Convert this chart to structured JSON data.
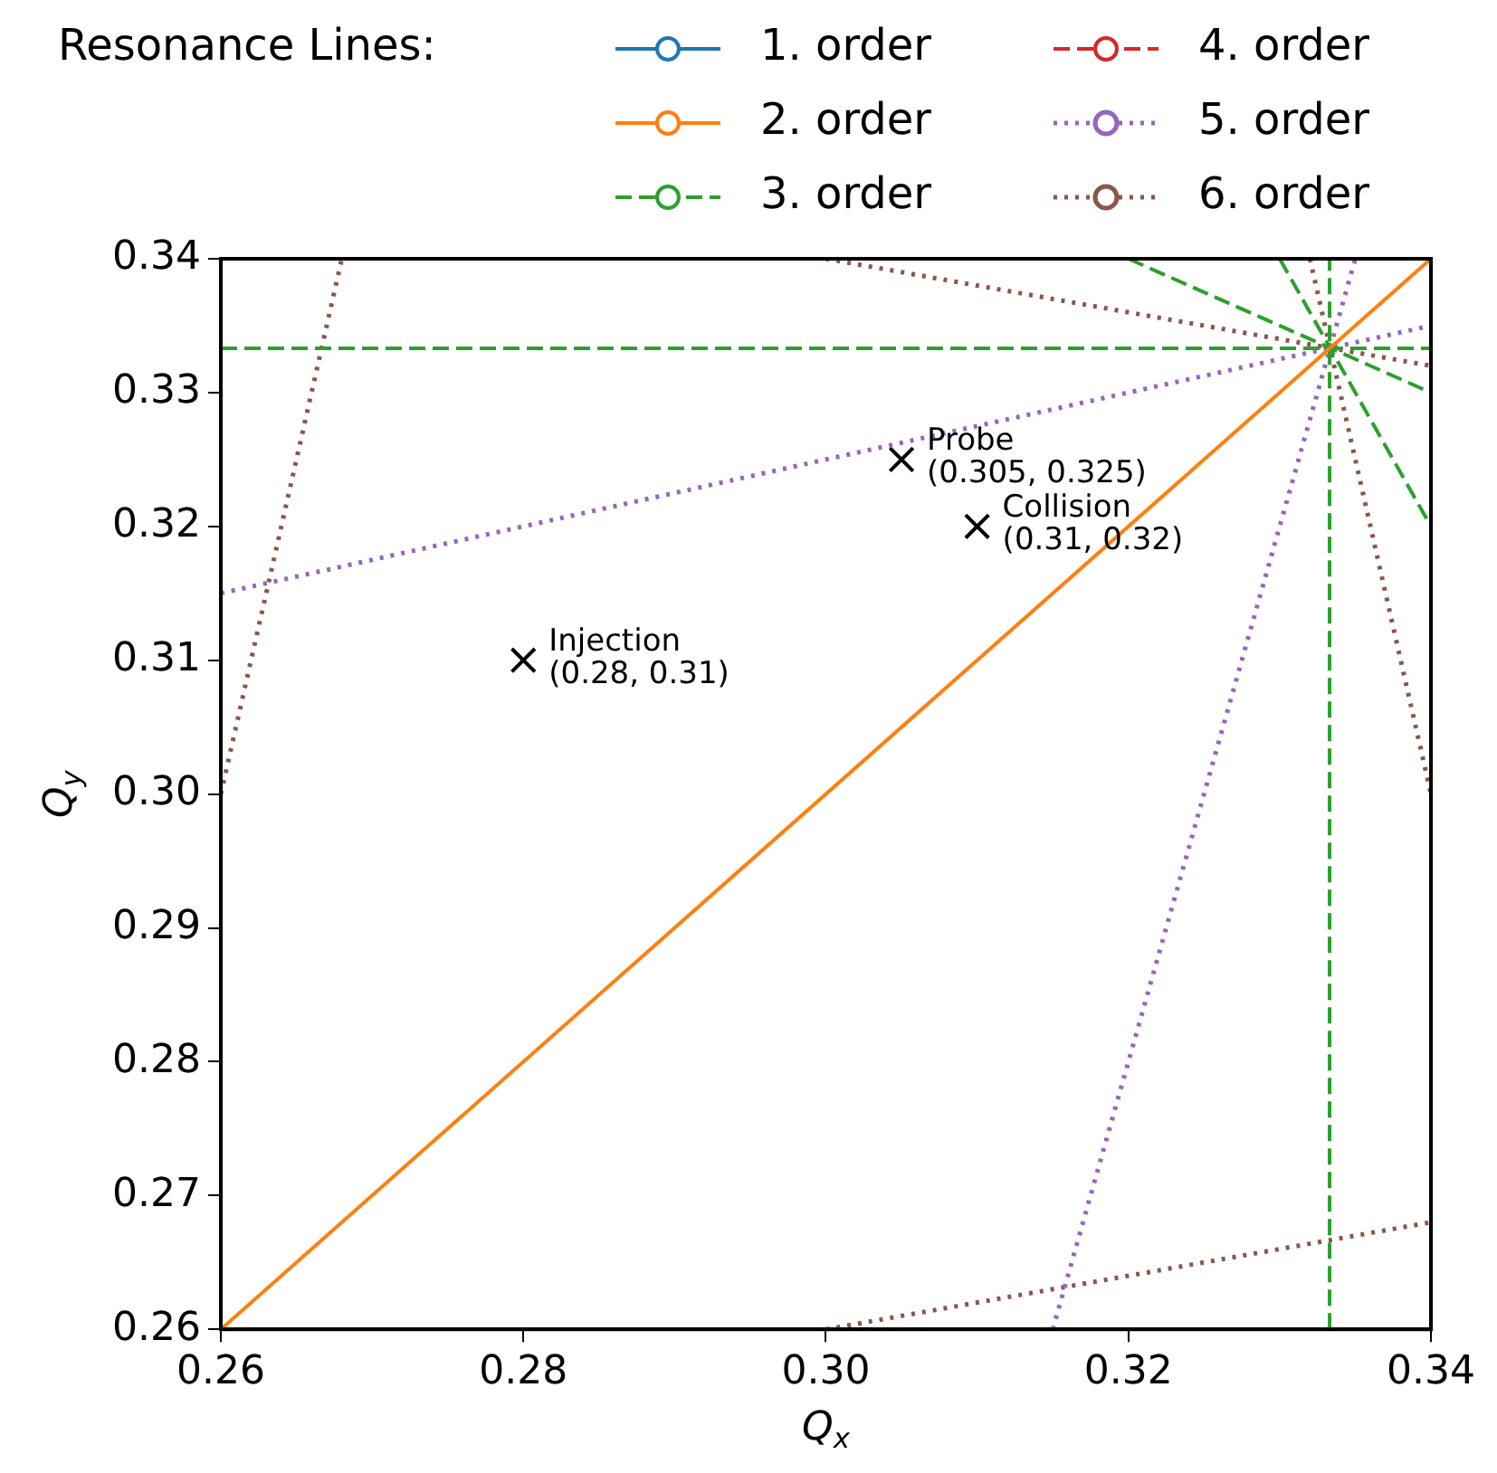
{
  "chart_data": {
    "type": "line",
    "xlabel": "Q$_{x}$",
    "ylabel": "Q$_{y}$",
    "legend_title": "Resonance Lines:",
    "legend": "top",
    "grid": false,
    "xlim": [
      0.26,
      0.34
    ],
    "ylim": [
      0.26,
      0.34
    ],
    "xticks": [
      0.26,
      0.28,
      {
        "value": 0.3,
        "label": "0.30"
      },
      0.32,
      0.34
    ],
    "yticks": [
      0.26,
      0.27,
      0.28,
      0.29,
      {
        "value": 0.3,
        "label": "0.30"
      },
      0.31,
      0.32,
      0.33,
      0.34
    ],
    "series": [
      {
        "name": "1. order",
        "color": "#1f77b4",
        "line_style": "solid"
      },
      {
        "name": "2. order",
        "color": "#ff7f0e",
        "line_style": "solid",
        "x": [
          0.26,
          0.34
        ],
        "values": [
          0.26,
          0.34
        ]
      },
      {
        "name": "3. order",
        "color": "#2ca02c",
        "line_style": "dashed",
        "x": [
          0.26,
          0.34
        ],
        "values": [
          0.3333,
          0.3333
        ]
      },
      {
        "color": "#2ca02c",
        "line_style": "dashed",
        "x": [
          0.3333,
          0.3333
        ],
        "values": [
          0.26,
          0.34
        ]
      },
      {
        "color": "#2ca02c",
        "line_style": "dashed",
        "x": [
          0.32,
          0.34
        ],
        "values": [
          0.34,
          0.33
        ]
      },
      {
        "color": "#2ca02c",
        "line_style": "dashed",
        "x": [
          0.33,
          0.34
        ],
        "values": [
          0.34,
          0.32
        ]
      },
      {
        "name": "4. order",
        "color": "#d62728",
        "line_style": "dashed"
      },
      {
        "name": "5. order",
        "color": "#9467bd",
        "line_style": "dotted",
        "x": [
          0.26,
          0.34
        ],
        "values": [
          0.315,
          0.335
        ]
      },
      {
        "color": "#9467bd",
        "line_style": "dotted",
        "x": [
          0.315,
          0.335
        ],
        "values": [
          0.26,
          0.34
        ]
      },
      {
        "name": "6. order",
        "color": "#8c564b",
        "line_style": "dotted",
        "x": [
          0.26,
          0.268
        ],
        "values": [
          0.3,
          0.34
        ]
      },
      {
        "color": "#8c564b",
        "line_style": "dotted",
        "x": [
          0.3,
          0.34
        ],
        "values": [
          0.26,
          0.268
        ]
      },
      {
        "color": "#8c564b",
        "line_style": "dotted",
        "x": [
          0.3,
          0.34
        ],
        "values": [
          0.34,
          0.332
        ]
      },
      {
        "color": "#8c564b",
        "line_style": "dotted",
        "x": [
          0.332,
          0.34
        ],
        "values": [
          0.34,
          0.3
        ]
      },
      {
        "type": "scatter",
        "marker": "cross",
        "color": "#000000",
        "x": [
          0.28,
          0.305,
          0.31
        ],
        "values": [
          0.31,
          0.325,
          0.32
        ]
      }
    ],
    "annotations": [
      {
        "text": "Injection",
        "x": 0.28,
        "y": 0.31
      },
      {
        "text": "(0.28, 0.31)",
        "x": 0.28,
        "y": 0.31
      },
      {
        "text": "Probe",
        "x": 0.305,
        "y": 0.325
      },
      {
        "text": "(0.305, 0.325)",
        "x": 0.305,
        "y": 0.325
      },
      {
        "text": "Collision",
        "x": 0.31,
        "y": 0.32
      },
      {
        "text": "(0.31, 0.32)",
        "x": 0.31,
        "y": 0.32
      }
    ]
  }
}
